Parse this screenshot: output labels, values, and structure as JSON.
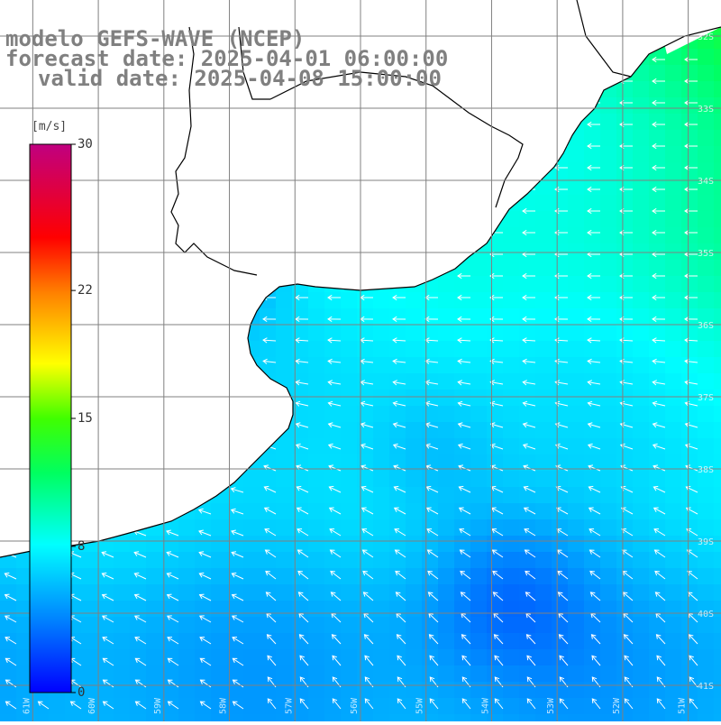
{
  "title": {
    "line1": "modelo GEFS-WAVE (NCEP)",
    "line2": "forecast date: 2025-04-01 06:00:00",
    "line3": "valid date: 2025-04-08 15:00:00"
  },
  "colorbar": {
    "unit": "[m/s]",
    "ticks": [
      {
        "label": "30",
        "value": 30
      },
      {
        "label": "22",
        "value": 22
      },
      {
        "label": "15",
        "value": 15
      },
      {
        "label": "8",
        "value": 8
      },
      {
        "label": "0",
        "value": 0
      }
    ],
    "min": 0,
    "max": 30
  },
  "map": {
    "lat_labels": [
      "32S",
      "33S",
      "34S",
      "35S",
      "36S",
      "37S",
      "38S",
      "39S",
      "40S",
      "41S"
    ],
    "lon_labels": [
      "61W",
      "60W",
      "59W",
      "58W",
      "57W",
      "56W",
      "55W",
      "54W",
      "53W",
      "52W",
      "51W"
    ],
    "lat_range": [
      -41.5,
      -31.5
    ],
    "lon_range": [
      -61.5,
      -50.5
    ],
    "grid": true,
    "field": "wind speed",
    "colors": {
      "land": "#ffffff",
      "coastline": "#000000",
      "grid": "#808080",
      "arrows": "#ffffff",
      "title": "#808080"
    }
  }
}
